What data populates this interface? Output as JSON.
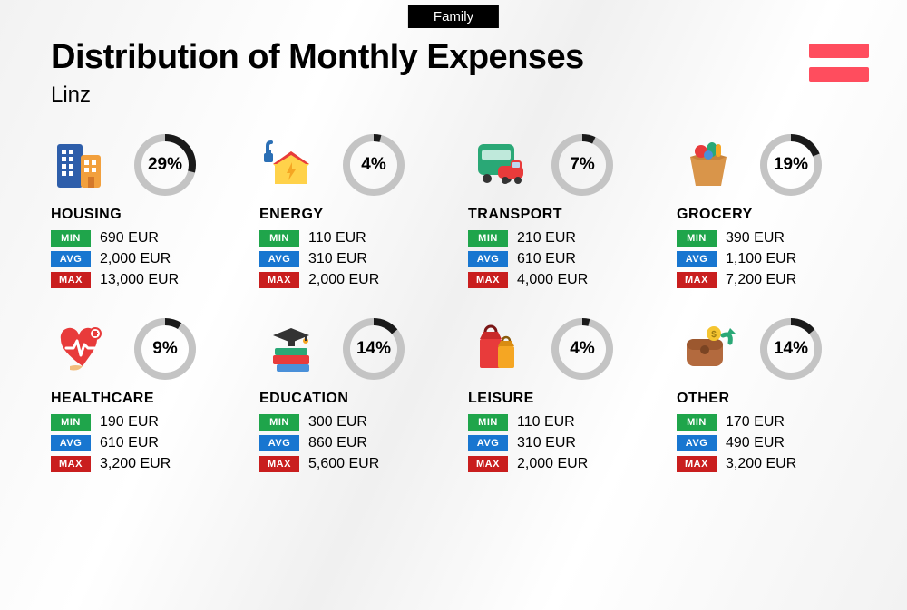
{
  "tag": "Family",
  "title": "Distribution of Monthly Expenses",
  "city": "Linz",
  "flag_color": "#ff4d5e",
  "ring": {
    "fg": "#1a1a1a",
    "bg": "#c4c4c4",
    "stroke": 8,
    "radius": 30
  },
  "badge_labels": {
    "min": "MIN",
    "avg": "AVG",
    "max": "MAX"
  },
  "badge_colors": {
    "min": "#1fa54b",
    "avg": "#1876d0",
    "max": "#c91e1e"
  },
  "categories": [
    {
      "name": "HOUSING",
      "pct": 29,
      "pct_label": "29%",
      "min": "690 EUR",
      "avg": "2,000 EUR",
      "max": "13,000 EUR",
      "icon": "buildings"
    },
    {
      "name": "ENERGY",
      "pct": 4,
      "pct_label": "4%",
      "min": "110 EUR",
      "avg": "310 EUR",
      "max": "2,000 EUR",
      "icon": "energy"
    },
    {
      "name": "TRANSPORT",
      "pct": 7,
      "pct_label": "7%",
      "min": "210 EUR",
      "avg": "610 EUR",
      "max": "4,000 EUR",
      "icon": "transport"
    },
    {
      "name": "GROCERY",
      "pct": 19,
      "pct_label": "19%",
      "min": "390 EUR",
      "avg": "1,100 EUR",
      "max": "7,200 EUR",
      "icon": "grocery"
    },
    {
      "name": "HEALTHCARE",
      "pct": 9,
      "pct_label": "9%",
      "min": "190 EUR",
      "avg": "610 EUR",
      "max": "3,200 EUR",
      "icon": "healthcare"
    },
    {
      "name": "EDUCATION",
      "pct": 14,
      "pct_label": "14%",
      "min": "300 EUR",
      "avg": "860 EUR",
      "max": "5,600 EUR",
      "icon": "education"
    },
    {
      "name": "LEISURE",
      "pct": 4,
      "pct_label": "4%",
      "min": "110 EUR",
      "avg": "310 EUR",
      "max": "2,000 EUR",
      "icon": "leisure"
    },
    {
      "name": "OTHER",
      "pct": 14,
      "pct_label": "14%",
      "min": "170 EUR",
      "avg": "490 EUR",
      "max": "3,200 EUR",
      "icon": "other"
    }
  ]
}
